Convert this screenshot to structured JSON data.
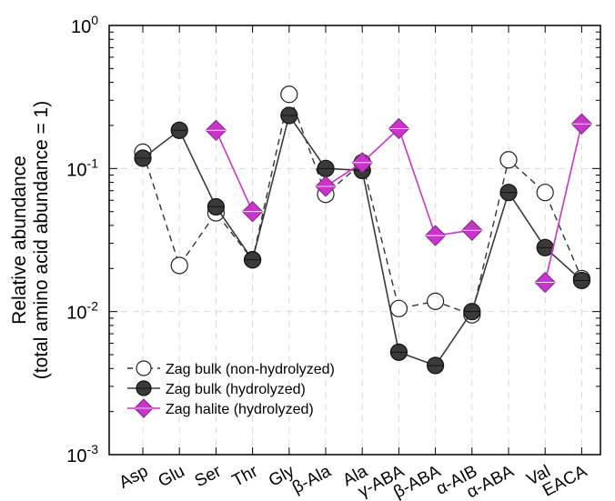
{
  "chart_data": {
    "type": "line",
    "yscale": "log",
    "ylim": [
      0.001,
      1
    ],
    "yticks": [
      {
        "value": 1,
        "base": "10",
        "exp": "0"
      },
      {
        "value": 0.1,
        "base": "10",
        "exp": "-1"
      },
      {
        "value": 0.01,
        "base": "10",
        "exp": "-2"
      },
      {
        "value": 0.001,
        "base": "10",
        "exp": "-3"
      }
    ],
    "ylabel_line1": "Relative abundance",
    "ylabel_line2": "(total amino acid abundance = 1)",
    "categories": [
      "Asp",
      "Glu",
      "Ser",
      "Thr",
      "Gly",
      "β-Ala",
      "Ala",
      "γ-ABA",
      "β-ABA",
      "α-AIB",
      "α-ABA",
      "Val",
      "EACA"
    ],
    "grid": true,
    "legend_position": "bottom-left",
    "series": [
      {
        "name": "Zag bulk (non-hydrolyzed)",
        "style": "dashed-open-circle",
        "color": "#333333",
        "values": [
          0.13,
          0.021,
          0.049,
          0.023,
          0.33,
          0.066,
          0.11,
          0.0105,
          0.0118,
          0.0095,
          0.115,
          0.068,
          0.017
        ]
      },
      {
        "name": "Zag bulk (hydrolyzed)",
        "style": "solid-filled-circle",
        "color": "#3a3a3a",
        "values": [
          0.118,
          0.185,
          0.054,
          0.023,
          0.235,
          0.1,
          0.097,
          0.0052,
          0.0042,
          0.01,
          0.068,
          0.028,
          0.0165
        ]
      },
      {
        "name": "Zag halite (hydrolyzed)",
        "style": "solid-magenta-diamond",
        "color": "#cc33cc",
        "segments": [
          [
            [
              2,
              0.185
            ],
            [
              3,
              0.05
            ]
          ],
          [
            [
              5,
              0.075
            ],
            [
              6,
              0.11
            ],
            [
              7,
              0.19
            ],
            [
              8,
              0.034
            ],
            [
              9,
              0.037
            ]
          ],
          [
            [
              11,
              0.016
            ],
            [
              12,
              0.205
            ]
          ]
        ]
      }
    ]
  }
}
